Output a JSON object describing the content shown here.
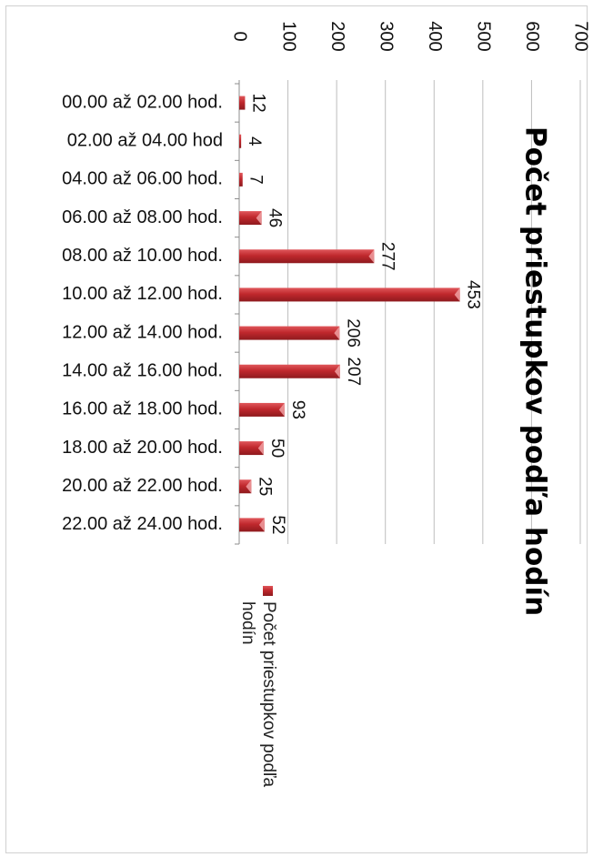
{
  "chart_data": {
    "type": "bar",
    "orientation": "horizontal",
    "title": "Počet priestupkov podľa hodín",
    "categories": [
      "00.00 až 02.00 hod.",
      "02.00 až 04.00 hod",
      "04.00 až 06.00 hod.",
      "06.00 až 08.00 hod.",
      "08.00 až 10.00 hod.",
      "10.00 až 12.00 hod.",
      "12.00 až 14.00 hod.",
      "14.00 až 16.00 hod.",
      "16.00 až 18.00 hod.",
      "18.00 až 20.00 hod.",
      "20.00 až 22.00 hod.",
      "22.00 až 24.00 hod."
    ],
    "series": [
      {
        "name": "Počet priestupkov podľa hodín",
        "values": [
          12,
          4,
          7,
          46,
          277,
          453,
          206,
          207,
          93,
          50,
          25,
          52
        ],
        "color": "#c0282d"
      }
    ],
    "value_axis": {
      "min": 0,
      "max": 700,
      "ticks": [
        0,
        100,
        200,
        300,
        400,
        500,
        600,
        700
      ]
    },
    "gridlines": true,
    "legend": {
      "position": "right",
      "lines": [
        "Počet priestupkov podľa",
        "hodín"
      ]
    }
  }
}
